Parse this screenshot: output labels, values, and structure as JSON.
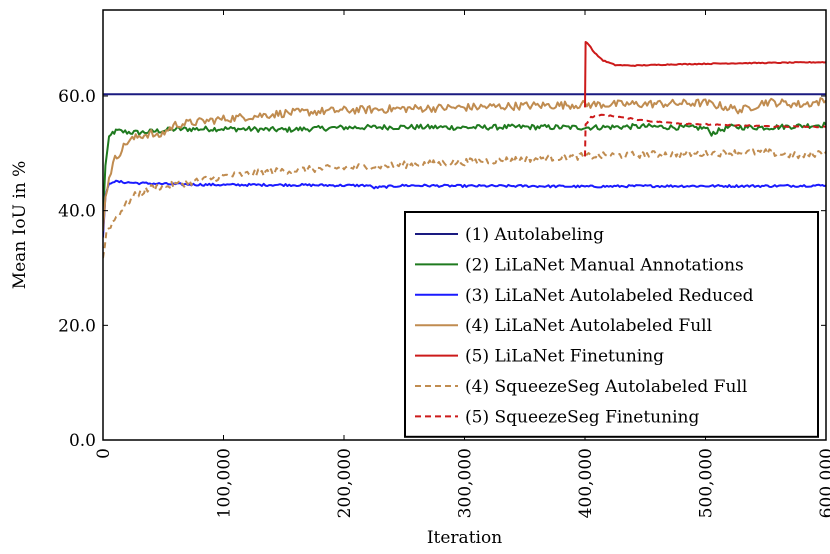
{
  "chart_data": {
    "type": "line",
    "title": "",
    "xlabel": "Iteration",
    "ylabel": "Mean IoU in %",
    "xlim": [
      0,
      600000
    ],
    "ylim": [
      0,
      75
    ],
    "x_ticks": [
      0,
      100000,
      200000,
      300000,
      400000,
      500000,
      600000
    ],
    "x_tick_labels": [
      "0",
      "100,000",
      "200,000",
      "300,000",
      "400,000",
      "500,000",
      "600,000"
    ],
    "y_ticks": [
      0,
      20,
      40,
      60
    ],
    "y_tick_labels": [
      "0.0",
      "20.0",
      "40.0",
      "60.0"
    ],
    "grid": false,
    "legend_position": "bottom-right",
    "series": [
      {
        "name": "(1) Autolabeling",
        "color": "#1a1a80",
        "style": "solid",
        "x": [
          0,
          600000
        ],
        "y": [
          60.3,
          60.3
        ]
      },
      {
        "name": "(2) LiLaNet Manual Annotations",
        "color": "#1f7a1f",
        "style": "solid",
        "x": [
          0,
          2000,
          5000,
          8000,
          12000,
          20000,
          30000,
          45000,
          60000,
          100000,
          150000,
          200000,
          250000,
          300000,
          350000,
          400000,
          450000,
          500000,
          505000,
          520000,
          550000,
          600000
        ],
        "y": [
          38.5,
          48.0,
          52.5,
          53.6,
          53.9,
          53.7,
          53.6,
          53.9,
          54.2,
          54.3,
          54.1,
          54.5,
          54.6,
          54.5,
          54.6,
          54.5,
          54.7,
          54.4,
          53.5,
          54.6,
          54.5,
          55.0
        ]
      },
      {
        "name": "(3) LiLaNet Autolabeled Reduced",
        "color": "#1a1aff",
        "style": "solid",
        "x": [
          0,
          2000,
          5000,
          8000,
          15000,
          30000,
          60000,
          100000,
          150000,
          200000,
          220000,
          225000,
          250000,
          300000,
          350000,
          400000,
          450000,
          500000,
          550000,
          600000
        ],
        "y": [
          35.5,
          42.5,
          44.6,
          45.1,
          45.0,
          44.8,
          44.6,
          44.5,
          44.5,
          44.4,
          44.4,
          44.0,
          44.4,
          44.3,
          44.3,
          44.2,
          44.3,
          44.3,
          44.3,
          44.4
        ]
      },
      {
        "name": "(4) LiLaNet Autolabeled Full",
        "color": "#c08c50",
        "style": "solid",
        "x": [
          0,
          2000,
          5000,
          10000,
          20000,
          30000,
          40000,
          45000,
          60000,
          80000,
          100000,
          150000,
          200000,
          250000,
          300000,
          350000,
          400000,
          450000,
          500000,
          530000,
          550000,
          580000,
          600000
        ],
        "y": [
          37.0,
          42.0,
          46.0,
          49.0,
          52.0,
          53.0,
          53.5,
          52.8,
          55.0,
          55.5,
          56.0,
          57.0,
          57.5,
          57.8,
          58.0,
          58.3,
          58.5,
          58.6,
          58.8,
          57.5,
          59.0,
          58.5,
          59.2
        ]
      },
      {
        "name": "(5) LiLaNet Finetuning",
        "color": "#cc1a1a",
        "style": "solid",
        "x": [
          400000,
          400500,
          403000,
          408000,
          415000,
          425000,
          440000,
          470000,
          520000,
          600000
        ],
        "y": [
          58.0,
          69.5,
          69.0,
          67.5,
          66.2,
          65.4,
          65.3,
          65.5,
          65.7,
          65.9
        ]
      },
      {
        "name": "(4) SqueezeSeg Autolabeled Full",
        "color": "#c08c50",
        "style": "dashed",
        "x": [
          0,
          3000,
          8000,
          15000,
          25000,
          40000,
          60000,
          100000,
          150000,
          200000,
          250000,
          300000,
          350000,
          400000,
          450000,
          500000,
          550000,
          580000,
          600000
        ],
        "y": [
          31.5,
          36.5,
          38.0,
          40.0,
          42.5,
          44.0,
          44.5,
          46.0,
          47.0,
          47.5,
          48.0,
          48.5,
          49.0,
          49.5,
          49.8,
          50.0,
          50.2,
          49.5,
          50.3
        ]
      },
      {
        "name": "(5) SqueezeSeg Finetuning",
        "color": "#cc1a1a",
        "style": "dashed",
        "x": [
          400000,
          400500,
          405000,
          415000,
          430000,
          450000,
          480000,
          520000,
          560000,
          600000
        ],
        "y": [
          49.5,
          55.0,
          56.3,
          56.7,
          56.3,
          55.7,
          55.2,
          54.9,
          54.7,
          54.6
        ]
      }
    ]
  }
}
